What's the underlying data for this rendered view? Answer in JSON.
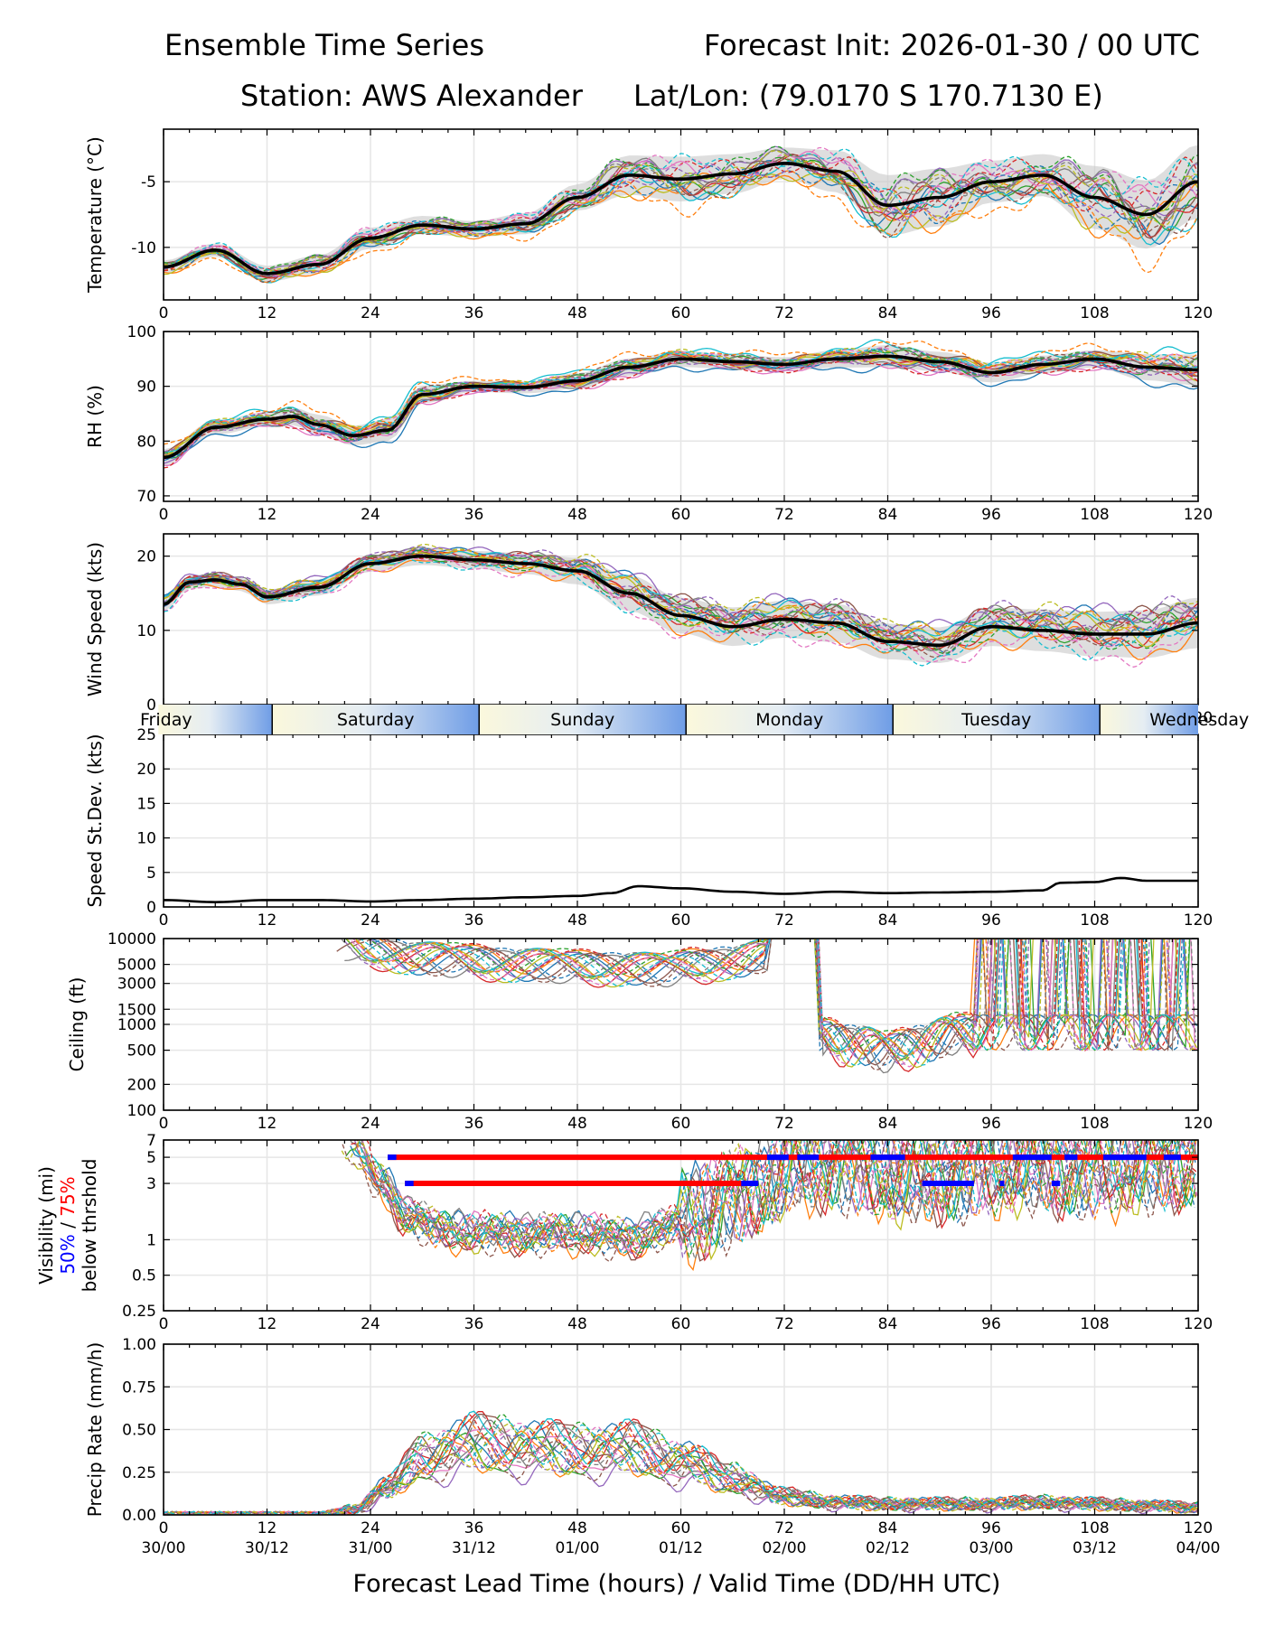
{
  "header": {
    "title_left": "Ensemble Time Series",
    "title_right": "Forecast Init: 2026-01-30 / 00 UTC",
    "station": "Station: AWS Alexander",
    "latlon": "Lat/Lon: (79.0170 S 170.7130 E)"
  },
  "x_axis": {
    "ticks": [
      0,
      12,
      24,
      36,
      48,
      60,
      72,
      84,
      96,
      108,
      120
    ],
    "valid_times": [
      "30/00",
      "30/12",
      "31/00",
      "31/12",
      "01/00",
      "01/12",
      "02/00",
      "02/12",
      "03/00",
      "03/12",
      "04/00"
    ],
    "label": "Forecast Lead Time (hours) / Valid Time (DD/HH UTC)"
  },
  "day_band": {
    "days": [
      {
        "label": "Friday",
        "start": -0.6,
        "end": 12.6
      },
      {
        "label": "Saturday",
        "start": 12.6,
        "end": 36.6
      },
      {
        "label": "Sunday",
        "start": 36.6,
        "end": 60.6
      },
      {
        "label": "Monday",
        "start": 60.6,
        "end": 84.6
      },
      {
        "label": "Tuesday",
        "start": 84.6,
        "end": 108.6
      },
      {
        "label": "Wednesday",
        "start": 108.6,
        "end": 120
      }
    ]
  },
  "colors": {
    "mean": "#000000",
    "band": "#c8c8c8",
    "blue50": "#0000ff",
    "red75": "#ff0000",
    "members": [
      "#1f77b4",
      "#ff7f0e",
      "#2ca02c",
      "#d62728",
      "#9467bd",
      "#8c564b",
      "#e377c2",
      "#7f7f7f",
      "#bcbd22",
      "#17becf"
    ]
  },
  "chart_data": [
    {
      "id": "temp",
      "type": "line",
      "ylabel": "Temperature (°C)",
      "ylim": [
        -14,
        -1
      ],
      "yticks": [
        -10,
        -5
      ],
      "scale": "linear",
      "x": [
        0,
        6,
        12,
        18,
        24,
        30,
        36,
        42,
        48,
        54,
        60,
        66,
        72,
        78,
        84,
        90,
        96,
        102,
        108,
        114,
        120
      ],
      "mean": [
        -11.5,
        -10.2,
        -12.0,
        -11.3,
        -9.3,
        -8.3,
        -8.6,
        -8.2,
        -6.2,
        -4.5,
        -4.8,
        -4.4,
        -3.6,
        -4.2,
        -6.8,
        -6.2,
        -5.0,
        -4.5,
        -6.2,
        -7.5,
        -5.0
      ],
      "spread": [
        0.5,
        0.5,
        0.6,
        0.7,
        0.8,
        0.7,
        0.6,
        0.8,
        1.0,
        1.5,
        1.7,
        1.5,
        1.2,
        1.6,
        2.3,
        2.2,
        1.6,
        1.6,
        2.4,
        2.6,
        2.8
      ],
      "members": 20
    },
    {
      "id": "rh",
      "type": "line",
      "ylabel": "RH (%)",
      "ylim": [
        69,
        100
      ],
      "yticks": [
        70,
        80,
        90,
        100
      ],
      "scale": "linear",
      "x": [
        0,
        6,
        12,
        15,
        18,
        22,
        26,
        30,
        36,
        42,
        48,
        54,
        60,
        66,
        72,
        78,
        84,
        90,
        96,
        102,
        108,
        114,
        120
      ],
      "mean": [
        77,
        82.5,
        84,
        84.5,
        83,
        81,
        82,
        88.5,
        90,
        89.8,
        91,
        93.5,
        95,
        94.5,
        94,
        95,
        95.5,
        94.5,
        92.5,
        94,
        95,
        93.5,
        93
      ],
      "spread": [
        1.5,
        1.3,
        1.3,
        1.6,
        1.8,
        1.8,
        2.0,
        1.6,
        1.0,
        1.1,
        1.4,
        1.6,
        1.5,
        1.3,
        1.3,
        1.6,
        2.0,
        1.8,
        1.8,
        1.6,
        1.6,
        2.4,
        2.8
      ],
      "members": 20
    },
    {
      "id": "wind",
      "type": "line",
      "ylabel": "Wind Speed (kts)",
      "ylim": [
        0,
        23
      ],
      "yticks": [
        0,
        10,
        20
      ],
      "scale": "linear",
      "x": [
        0,
        3,
        6,
        9,
        12,
        18,
        24,
        30,
        36,
        42,
        48,
        54,
        60,
        66,
        72,
        78,
        84,
        90,
        96,
        102,
        108,
        114,
        120
      ],
      "mean": [
        13.5,
        16.5,
        16.8,
        16.2,
        14.5,
        15.8,
        19,
        20,
        19.5,
        19,
        18,
        15,
        12,
        10.5,
        11.5,
        11,
        8.5,
        8,
        10.5,
        10,
        9.5,
        9.5,
        11
      ],
      "spread": [
        1.0,
        0.9,
        0.9,
        0.9,
        1.0,
        1.1,
        1.1,
        1.2,
        1.2,
        1.4,
        1.8,
        2.4,
        2.4,
        2.6,
        2.5,
        2.6,
        2.4,
        2.4,
        2.6,
        2.8,
        3.0,
        3.2,
        3.4
      ],
      "members": 20
    },
    {
      "id": "stdev",
      "type": "line",
      "ylabel": "Speed St.Dev. (kts)",
      "ylim": [
        0,
        25
      ],
      "yticks": [
        0,
        5,
        10,
        15,
        20,
        25
      ],
      "scale": "linear",
      "x": [
        0,
        6,
        12,
        18,
        24,
        30,
        36,
        42,
        48,
        52,
        55,
        60,
        66,
        72,
        78,
        84,
        90,
        96,
        102,
        104,
        108,
        111,
        114,
        120
      ],
      "mean": [
        1.0,
        0.7,
        1.0,
        1.0,
        0.8,
        1.0,
        1.2,
        1.4,
        1.6,
        2.0,
        3.0,
        2.7,
        2.2,
        1.9,
        2.2,
        2.0,
        2.1,
        2.2,
        2.4,
        3.5,
        3.6,
        4.2,
        3.8,
        3.8
      ],
      "members": 0
    },
    {
      "id": "ceiling",
      "type": "line",
      "ylabel": "Ceiling (ft)",
      "ylim": [
        100,
        10000
      ],
      "yticks": [
        100,
        200,
        500,
        1000,
        1500,
        3000,
        5000,
        10000
      ],
      "scale": "log",
      "x": [
        20,
        24,
        30,
        36,
        42,
        48,
        54,
        58,
        62,
        66,
        70
      ],
      "mean": [
        10000,
        8000,
        6500,
        6000,
        5500,
        5200,
        5000,
        4800,
        5500,
        6000,
        7000
      ],
      "x_low": [
        76,
        80,
        84,
        88,
        92
      ],
      "low": [
        800,
        700,
        550,
        700,
        900
      ],
      "members": 20
    },
    {
      "id": "vis",
      "type": "line",
      "ylabel": "Visibility (mi)",
      "ylabel_sub1": "50%",
      "ylabel_sep": " / ",
      "ylabel_sub2": "75%",
      "ylabel_sub3": "below thrshold",
      "ylim": [
        0.25,
        7
      ],
      "yticks": [
        0.25,
        0.5,
        1,
        3,
        5,
        7
      ],
      "scale": "log",
      "x": [
        22,
        25,
        28,
        32,
        36,
        42,
        48,
        54,
        58,
        62,
        66,
        70,
        74,
        78,
        82,
        86,
        90,
        96,
        102,
        108,
        114,
        120
      ],
      "mean": [
        6,
        3,
        1.6,
        1.2,
        1.1,
        1.1,
        1.1,
        1.0,
        1.2,
        1.6,
        2.2,
        3,
        4,
        4.5,
        4,
        3,
        3.5,
        4,
        4,
        3.8,
        4.2,
        4.5
      ],
      "bars_red": [
        {
          "y": 5,
          "x0": 26,
          "x1": 120
        },
        {
          "y": 3,
          "x0": 28,
          "x1": 69
        }
      ],
      "bars_blue_5": [
        [
          26,
          27
        ],
        [
          70,
          72.5
        ],
        [
          73.5,
          76
        ],
        [
          82,
          86
        ],
        [
          98.5,
          103
        ],
        [
          104.5,
          106
        ],
        [
          109,
          114
        ],
        [
          116,
          118
        ]
      ],
      "bars_blue_3": [
        [
          28,
          29
        ],
        [
          67,
          69
        ],
        [
          88,
          94
        ],
        [
          97,
          97.5
        ],
        [
          103,
          104
        ]
      ],
      "members": 20
    },
    {
      "id": "precip",
      "type": "line",
      "ylabel": "Precip Rate (mm/h)",
      "ylim": [
        0,
        1
      ],
      "yticks": [
        0.0,
        0.25,
        0.5,
        0.75,
        1.0
      ],
      "scale": "linear",
      "x": [
        0,
        18,
        22,
        26,
        30,
        36,
        42,
        48,
        54,
        60,
        66,
        72,
        78,
        84,
        90,
        96,
        102,
        108,
        114,
        120
      ],
      "mean": [
        0,
        0,
        0.03,
        0.15,
        0.32,
        0.4,
        0.38,
        0.36,
        0.37,
        0.3,
        0.2,
        0.1,
        0.07,
        0.06,
        0.06,
        0.06,
        0.07,
        0.06,
        0.05,
        0.04
      ],
      "members": 20
    }
  ]
}
